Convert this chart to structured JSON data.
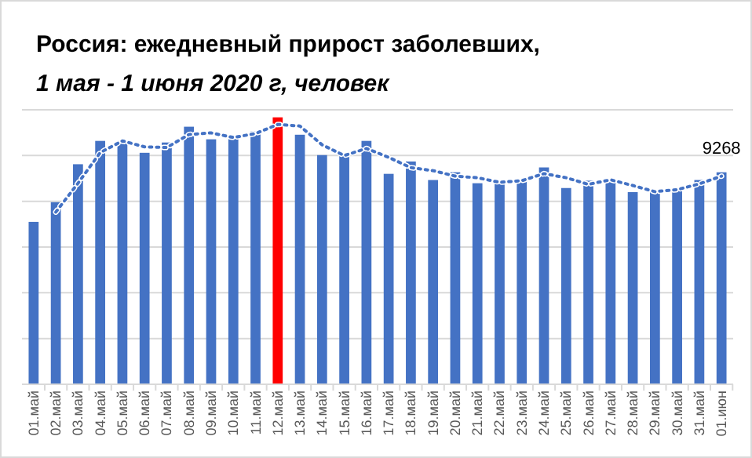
{
  "chart_data": {
    "type": "bar",
    "title": "Россия: ежедневный прирост заболевших,",
    "subtitle": "1 мая - 1 июня 2020 г, человек",
    "grid": "y",
    "ylim": [
      0,
      12000
    ],
    "yticks": [
      {
        "value": 0,
        "label": null
      },
      {
        "value": 2000,
        "label": null
      },
      {
        "value": 4000,
        "label": null
      },
      {
        "value": 6000,
        "label": null
      },
      {
        "value": 8000,
        "label": null
      },
      {
        "value": 10000,
        "label": null
      },
      {
        "value": 12000,
        "label": null
      }
    ],
    "tick_labels": "x",
    "categories": [
      "01.май",
      "02.май",
      "03.май",
      "04.май",
      "05.май",
      "06.май",
      "07.май",
      "08.май",
      "09.май",
      "10.май",
      "11.май",
      "12.май",
      "13.май",
      "14.май",
      "15.май",
      "16.май",
      "17.май",
      "18.май",
      "19.май",
      "20.май",
      "21.май",
      "22.май",
      "23.май",
      "24.май",
      "25.май",
      "26.май",
      "27.май",
      "28.май",
      "29.май",
      "30.май",
      "31.май",
      "01.июн"
    ],
    "series": [
      {
        "colors": [
          "#4472c4",
          "#4472c4",
          "#4472c4",
          "#4472c4",
          "#4472c4",
          "#4472c4",
          "#4472c4",
          "#4472c4",
          "#4472c4",
          "#4472c4",
          "#4472c4",
          "#ff0000",
          "#4472c4",
          "#4472c4",
          "#4472c4",
          "#4472c4",
          "#4472c4",
          "#4472c4",
          "#4472c4",
          "#4472c4",
          "#4472c4",
          "#4472c4",
          "#4472c4",
          "#4472c4",
          "#4472c4",
          "#4472c4",
          "#4472c4",
          "#4472c4",
          "#4472c4",
          "#4472c4",
          "#4472c4",
          "#4472c4"
        ],
        "values": [
          7100,
          7960,
          9620,
          10640,
          10640,
          10120,
          10570,
          11260,
          10710,
          10860,
          11050,
          11670,
          10910,
          10020,
          9980,
          10640,
          9200,
          9740,
          8930,
          9270,
          8790,
          8860,
          8930,
          9480,
          8580,
          8900,
          8970,
          8400,
          8430,
          8580,
          8930,
          9268
        ],
        "value_labels": [
          null,
          null,
          null,
          null,
          null,
          null,
          null,
          null,
          null,
          null,
          null,
          null,
          null,
          null,
          null,
          null,
          null,
          null,
          null,
          null,
          null,
          null,
          null,
          null,
          null,
          null,
          null,
          null,
          null,
          null,
          null,
          "9268"
        ]
      },
      {
        "type": "line",
        "color": "#4472c4",
        "line_style": "dotted",
        "marker": "none",
        "values": [
          null,
          7530,
          8790,
          10130,
          10640,
          10380,
          10350,
          10920,
          10990,
          10790,
          10960,
          11360,
          11290,
          10470,
          10000,
          10310,
          9920,
          9470,
          9340,
          9100,
          9030,
          8830,
          8900,
          9210,
          9030,
          8740,
          8940,
          8690,
          8420,
          8510,
          8760,
          9100
        ]
      }
    ]
  }
}
